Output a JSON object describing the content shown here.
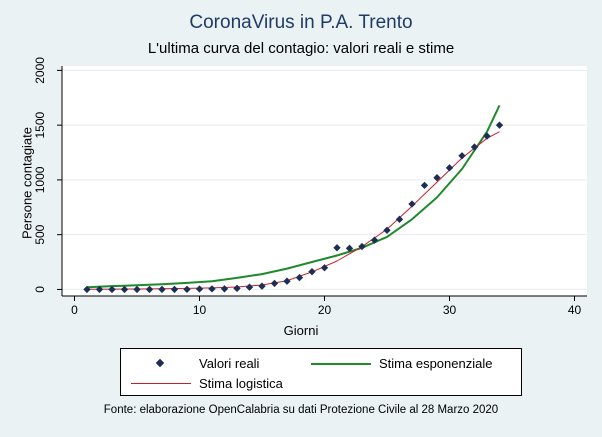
{
  "title": "CoronaVirus in P.A. Trento",
  "subtitle": "L'ultima curva del contagio: valori reali e stime",
  "source": "Fonte: elaborazione OpenCalabria su dati Protezione Civile al 28 Marzo 2020",
  "colors": {
    "background": "#eaf2f3",
    "plot_background": "#ffffff",
    "points": "#1b2f56",
    "exponential": "#1e8a2b",
    "logistic": "#c8202a",
    "title": "#1f3b66"
  },
  "chart_data": {
    "type": "scatter",
    "title": "CoronaVirus in P.A. Trento",
    "subtitle": "L'ultima curva del contagio: valori reali e stime",
    "xlabel": "Giorni",
    "ylabel": "Persone contagiate",
    "xlim": [
      -1,
      41
    ],
    "ylim": [
      -60,
      2040
    ],
    "xticks": [
      0,
      10,
      20,
      30,
      40
    ],
    "yticks": [
      0,
      500,
      1000,
      1500,
      2000
    ],
    "grid": "horizontal",
    "legend_position": "bottom",
    "series": [
      {
        "name": "Valori reali",
        "kind": "markers",
        "x": [
          1,
          2,
          3,
          4,
          5,
          6,
          7,
          8,
          9,
          10,
          11,
          12,
          13,
          14,
          15,
          16,
          17,
          18,
          19,
          20,
          21,
          22,
          23,
          24,
          25,
          26,
          27,
          28,
          29,
          30,
          31,
          32,
          33,
          34
        ],
        "y": [
          0,
          0,
          0,
          0,
          0,
          0,
          0,
          0,
          1,
          4,
          5,
          6,
          10,
          20,
          30,
          55,
          75,
          108,
          162,
          198,
          380,
          375,
          392,
          450,
          540,
          640,
          780,
          950,
          1020,
          1110,
          1220,
          1300,
          1400,
          1500
        ]
      },
      {
        "name": "Stima esponenziale",
        "kind": "line",
        "x": [
          1,
          3,
          5,
          7,
          9,
          11,
          13,
          15,
          17,
          19,
          21,
          23,
          25,
          27,
          29,
          31,
          33,
          34
        ],
        "y": [
          20,
          30,
          38,
          48,
          60,
          75,
          105,
          140,
          190,
          250,
          310,
          380,
          480,
          640,
          840,
          1100,
          1440,
          1680
        ]
      },
      {
        "name": "Stima logistica",
        "kind": "line",
        "x": [
          1,
          3,
          5,
          7,
          9,
          11,
          13,
          15,
          17,
          19,
          21,
          23,
          25,
          27,
          29,
          31,
          33,
          34
        ],
        "y": [
          2,
          3,
          4,
          6,
          9,
          14,
          22,
          40,
          80,
          160,
          260,
          390,
          550,
          760,
          980,
          1200,
          1380,
          1440
        ]
      }
    ]
  }
}
